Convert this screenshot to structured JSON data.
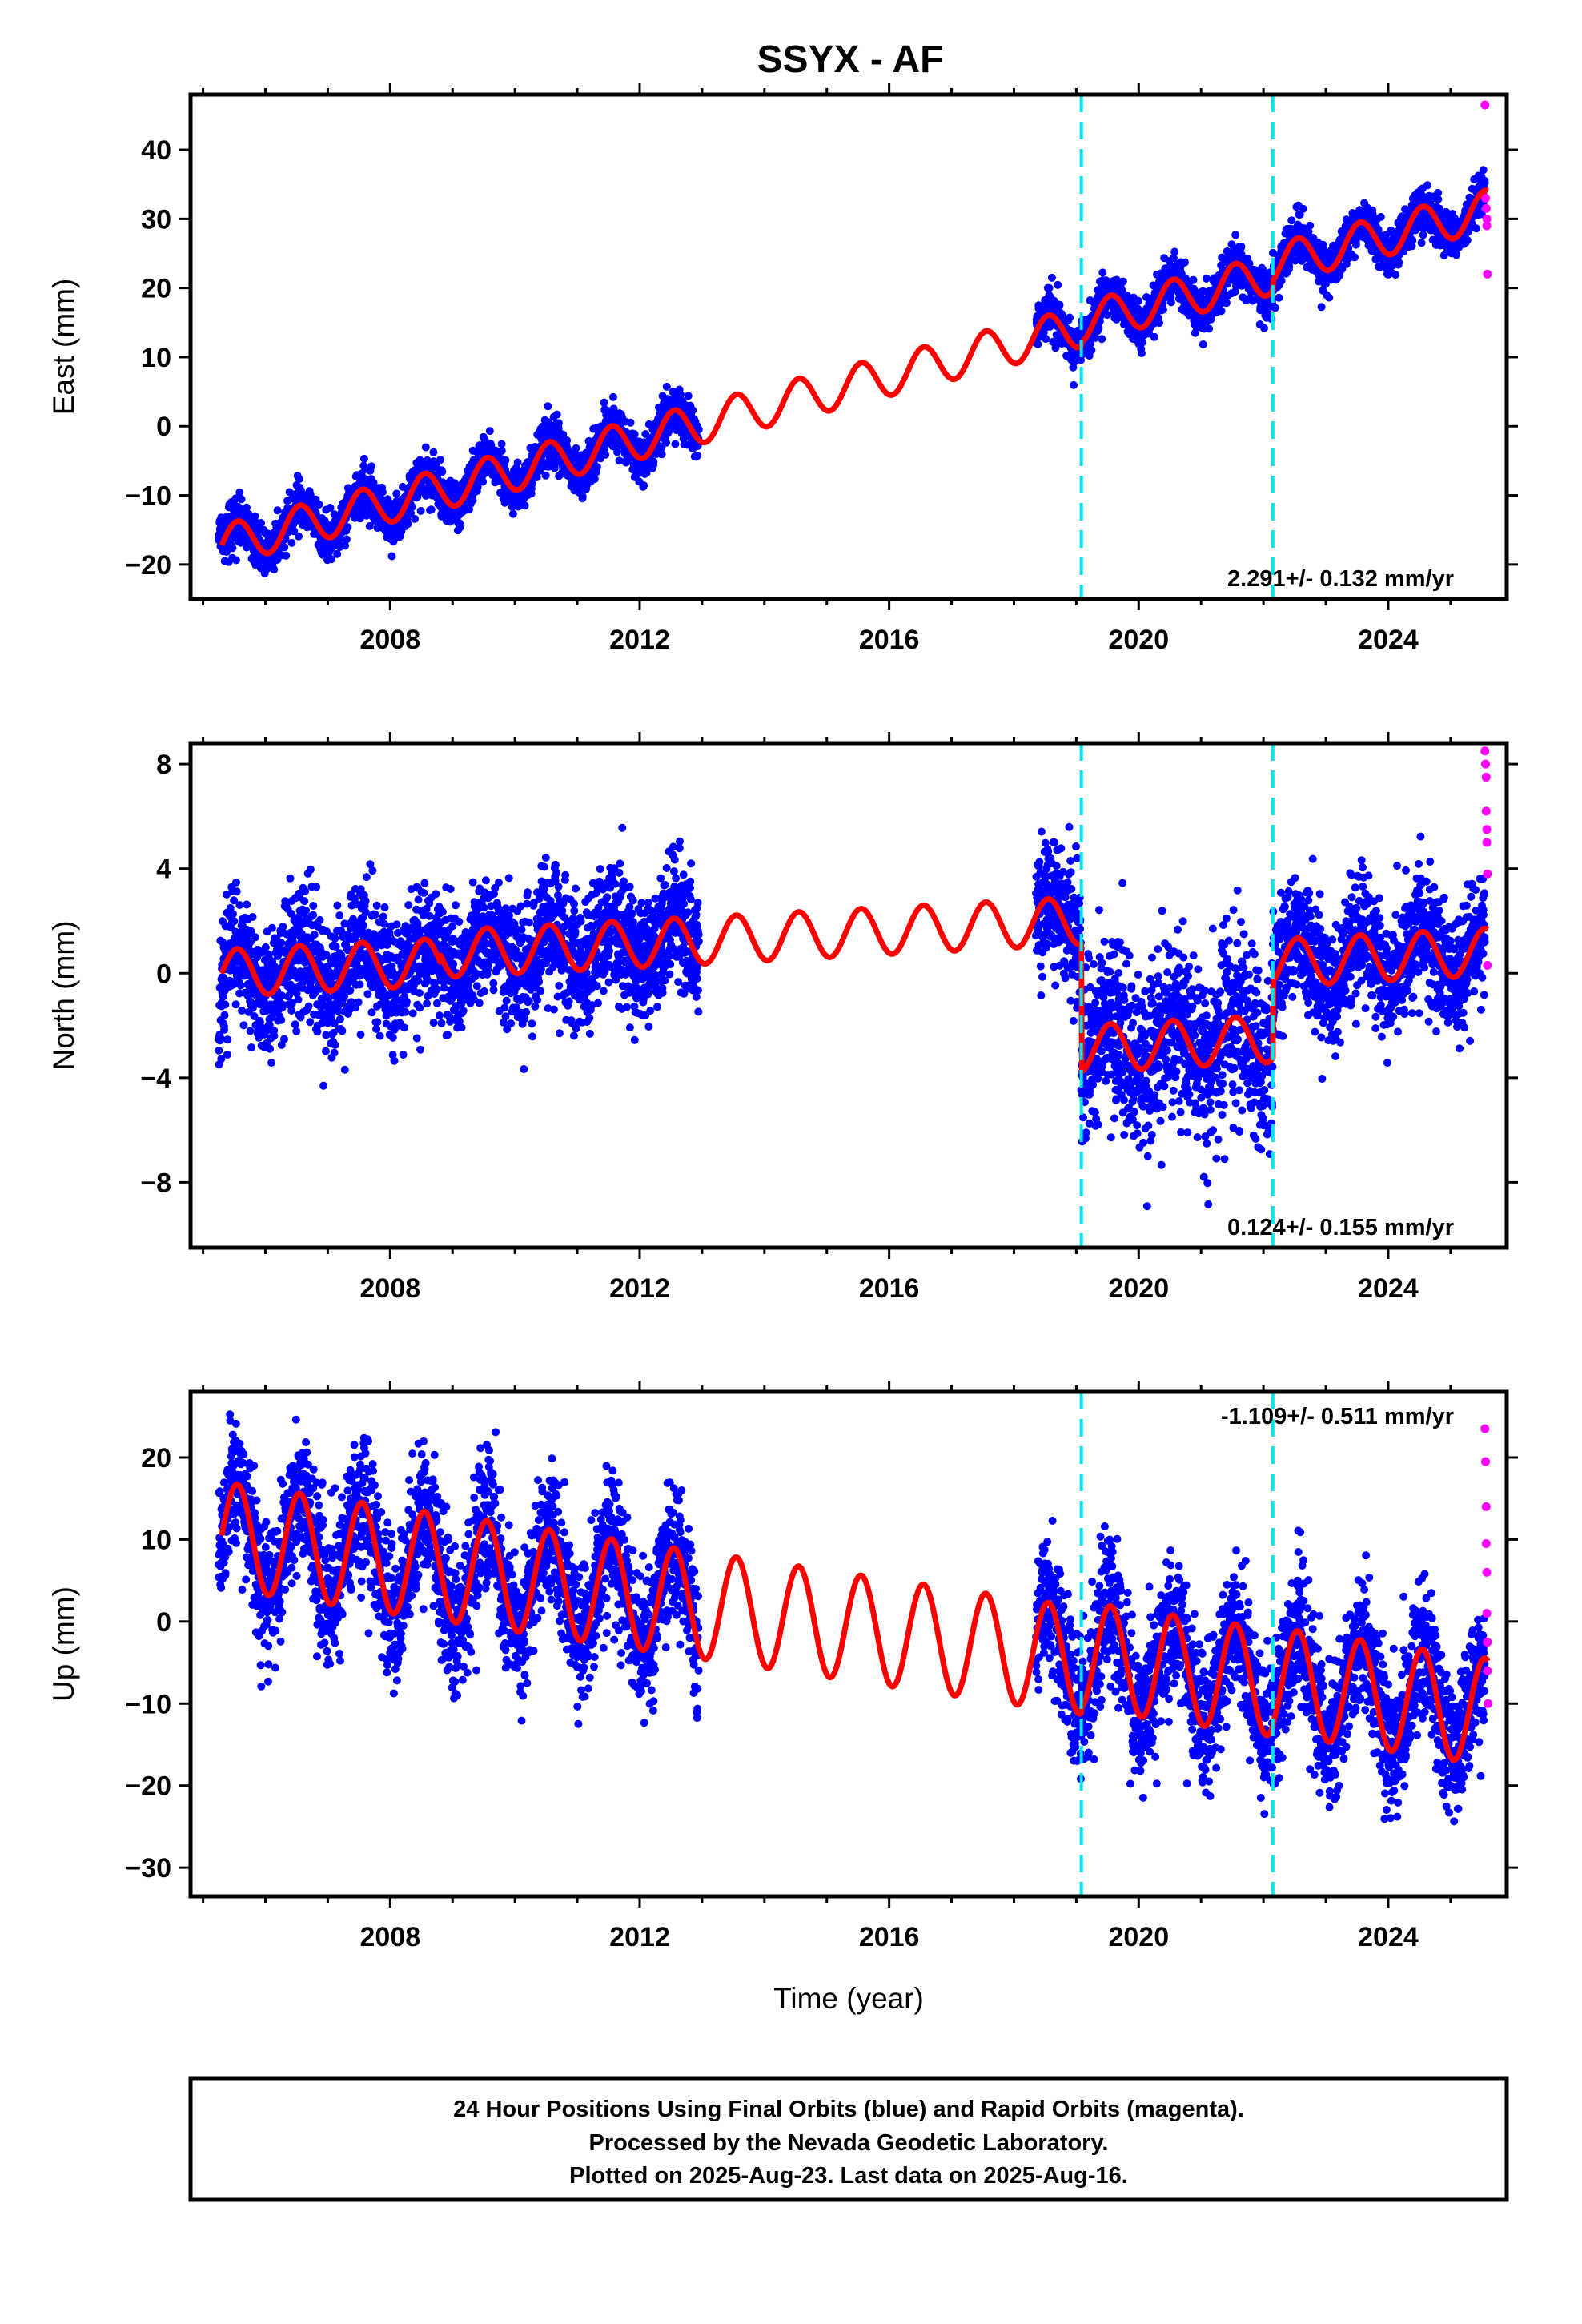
{
  "figure": {
    "title": "SSYX - AF",
    "footer": {
      "lines": [
        "24 Hour Positions Using Final Orbits (blue) and Rapid Orbits (magenta).",
        "Processed by the Nevada Geodetic Laboratory.",
        "Plotted on 2025-Aug-23. Last data on 2025-Aug-16."
      ]
    }
  },
  "colors": {
    "final_points": "#0000ff",
    "rapid_points": "#ff00ff",
    "model_fit": "#ff0000",
    "event_lines": "#00e5f0",
    "frame": "#000000"
  },
  "chart_data": [
    {
      "type": "scatter",
      "panel": "east",
      "ylabel": "East (mm)",
      "xlabel": "",
      "xlim": [
        2004.8,
        2025.9
      ],
      "ylim": [
        -25,
        48
      ],
      "x_ticks": [
        2008,
        2012,
        2016,
        2020,
        2024
      ],
      "y_ticks": [
        -20,
        -10,
        0,
        10,
        20,
        30,
        40
      ],
      "y_tick_labels": [
        "−20",
        "−10",
        "0",
        "10",
        "20",
        "30",
        "40"
      ],
      "event_lines_x": [
        2019.08,
        2022.15
      ],
      "rate_label": "2.291+/- 0.132 mm/yr",
      "rate_label_position": "bottom-right",
      "data_gap": [
        2012.95,
        2018.35
      ],
      "final_data_range": [
        2005.25,
        2025.55
      ],
      "model": {
        "segments": [
          {
            "x_start": 2005.3,
            "x_end": 2019.08,
            "offset": -17.2,
            "rate": 2.291,
            "seasonal_amp": 2.9
          },
          {
            "x_start": 2019.08,
            "x_end": 2022.15,
            "offset": -16.6,
            "rate": 2.291,
            "seasonal_amp": 2.9
          },
          {
            "x_start": 2022.15,
            "x_end": 2025.6,
            "offset": -15.2,
            "rate": 2.291,
            "seasonal_amp": 2.9
          }
        ],
        "trend_start_year": 2005.3
      },
      "scatter_sd": 1.6,
      "rapid_points": [
        {
          "x": 2025.55,
          "y": 46.5
        },
        {
          "x": 2025.56,
          "y": 33.0
        },
        {
          "x": 2025.57,
          "y": 31.5
        },
        {
          "x": 2025.58,
          "y": 30.0
        },
        {
          "x": 2025.58,
          "y": 29.0
        },
        {
          "x": 2025.59,
          "y": 22.0
        }
      ]
    },
    {
      "type": "scatter",
      "panel": "north",
      "ylabel": "North (mm)",
      "xlabel": "",
      "xlim": [
        2004.8,
        2025.9
      ],
      "ylim": [
        -10.5,
        8.8
      ],
      "x_ticks": [
        2008,
        2012,
        2016,
        2020,
        2024
      ],
      "y_ticks": [
        -8,
        -4,
        0,
        4,
        8
      ],
      "y_tick_labels": [
        "−8",
        "−4",
        "0",
        "4",
        "8"
      ],
      "event_lines_x": [
        2019.08,
        2022.15
      ],
      "rate_label": "0.124+/- 0.155 mm/yr",
      "rate_label_position": "bottom-right",
      "data_gap": [
        2012.95,
        2018.35
      ],
      "final_data_range": [
        2005.25,
        2025.55
      ],
      "model": {
        "segments": [
          {
            "x_start": 2005.3,
            "x_end": 2008.8,
            "offset": 0.0,
            "rate": 0.124,
            "seasonal_amp": 0.9
          },
          {
            "x_start": 2008.8,
            "x_end": 2019.08,
            "offset": 0.3,
            "rate": 0.124,
            "seasonal_amp": 0.9
          },
          {
            "x_start": 2019.08,
            "x_end": 2022.15,
            "offset": -4.6,
            "rate": 0.124,
            "seasonal_amp": 0.9
          },
          {
            "x_start": 2022.15,
            "x_end": 2025.6,
            "offset": -1.7,
            "rate": 0.124,
            "seasonal_amp": 0.9
          }
        ],
        "trend_start_year": 2005.3
      },
      "scatter_sd": 1.2,
      "rapid_points": [
        {
          "x": 2025.55,
          "y": 8.5
        },
        {
          "x": 2025.56,
          "y": 8.0
        },
        {
          "x": 2025.57,
          "y": 7.5
        },
        {
          "x": 2025.57,
          "y": 6.2
        },
        {
          "x": 2025.58,
          "y": 5.5
        },
        {
          "x": 2025.58,
          "y": 5.0
        },
        {
          "x": 2025.59,
          "y": 3.8
        },
        {
          "x": 2025.59,
          "y": 0.3
        }
      ]
    },
    {
      "type": "scatter",
      "panel": "up",
      "ylabel": "Up (mm)",
      "xlabel": "Time (year)",
      "xlim": [
        2004.8,
        2025.9
      ],
      "ylim": [
        -33.5,
        28
      ],
      "x_ticks": [
        2008,
        2012,
        2016,
        2020,
        2024
      ],
      "y_ticks": [
        -30,
        -20,
        -10,
        0,
        10,
        20
      ],
      "y_tick_labels": [
        "−30",
        "−20",
        "−10",
        "0",
        "10",
        "20"
      ],
      "event_lines_x": [
        2019.08,
        2022.15
      ],
      "rate_label": "-1.109+/- 0.511 mm/yr",
      "rate_label_position": "top-right",
      "data_gap": [
        2012.95,
        2018.35
      ],
      "final_data_range": [
        2005.25,
        2025.55
      ],
      "model": {
        "segments": [
          {
            "x_start": 2005.3,
            "x_end": 2019.08,
            "offset": 10.5,
            "rate": -1.109,
            "seasonal_amp": 6.5
          },
          {
            "x_start": 2019.08,
            "x_end": 2022.15,
            "offset": 11.2,
            "rate": -1.109,
            "seasonal_amp": 6.5
          },
          {
            "x_start": 2022.15,
            "x_end": 2025.6,
            "offset": 11.5,
            "rate": -1.109,
            "seasonal_amp": 6.5
          }
        ],
        "trend_start_year": 2005.3
      },
      "scatter_sd": 4.2,
      "rapid_points": [
        {
          "x": 2025.55,
          "y": 23.5
        },
        {
          "x": 2025.56,
          "y": 19.5
        },
        {
          "x": 2025.57,
          "y": 14.0
        },
        {
          "x": 2025.57,
          "y": 9.5
        },
        {
          "x": 2025.58,
          "y": 6.0
        },
        {
          "x": 2025.58,
          "y": 1.0
        },
        {
          "x": 2025.59,
          "y": -2.5
        },
        {
          "x": 2025.59,
          "y": -6.0
        },
        {
          "x": 2025.6,
          "y": -10.0
        }
      ]
    }
  ]
}
